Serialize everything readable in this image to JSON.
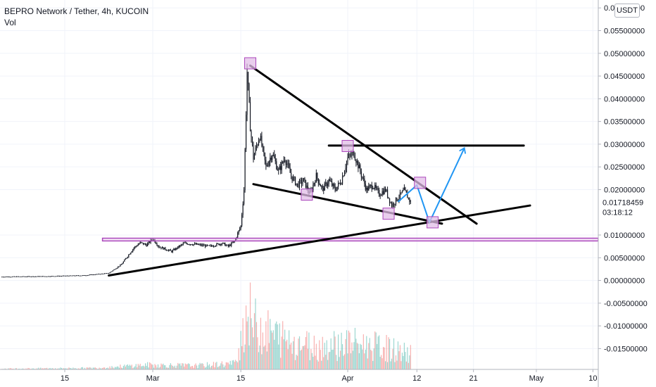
{
  "header": {
    "symbol_line": "BEPRO Network / Tether, 4h, KUCOIN",
    "volume_label": "Vol"
  },
  "currency_button": "USDT",
  "price_badge": {
    "price": "0.01718459",
    "countdown": "03:18:12",
    "color": "#ffffff"
  },
  "colors": {
    "up": "#26a69a",
    "down": "#ef5350",
    "candle": "#131722",
    "grid": "#f0f3fa",
    "drawing": "#000000",
    "projection": "#2196f3",
    "highlight_fill": "#e1bee7",
    "highlight_stroke": "#ab47bc",
    "zone_stroke": "#ab47bc"
  },
  "chart_data": {
    "type": "line",
    "title": "",
    "xlabel": "",
    "ylabel": "",
    "y_axis": {
      "ylim": [
        -0.0185,
        0.0605
      ],
      "ticks": [
        {
          "value": 0.06,
          "label": "0.06000000"
        },
        {
          "value": 0.055,
          "label": "0.05500000"
        },
        {
          "value": 0.05,
          "label": "0.05000000"
        },
        {
          "value": 0.045,
          "label": "0.04500000"
        },
        {
          "value": 0.04,
          "label": "0.04000000"
        },
        {
          "value": 0.035,
          "label": "0.03500000"
        },
        {
          "value": 0.03,
          "label": "0.03000000"
        },
        {
          "value": 0.025,
          "label": "0.02500000"
        },
        {
          "value": 0.02,
          "label": "0.02000000"
        },
        {
          "value": 0.01,
          "label": "0.01000000"
        },
        {
          "value": 0.005,
          "label": "0.00500000"
        },
        {
          "value": 0.0,
          "label": "0.00000000"
        },
        {
          "value": -0.005,
          "label": "-0.00500000"
        },
        {
          "value": -0.01,
          "label": "-0.01000000"
        },
        {
          "value": -0.015,
          "label": "-0.01500000"
        }
      ]
    },
    "x_axis": {
      "ticks": [
        {
          "day": 15,
          "label": "15"
        },
        {
          "day": 29,
          "label": "Mar"
        },
        {
          "day": 43,
          "label": "15"
        },
        {
          "day": 60,
          "label": "Apr"
        },
        {
          "day": 71,
          "label": "12"
        },
        {
          "day": 80,
          "label": "21"
        },
        {
          "day": 90,
          "label": "May"
        },
        {
          "day": 99,
          "label": "10"
        }
      ]
    },
    "grid": true,
    "legend": "none",
    "price_path": [
      [
        5,
        0.0008
      ],
      [
        12,
        0.0009
      ],
      [
        18,
        0.0011
      ],
      [
        22,
        0.0016
      ],
      [
        24,
        0.0035
      ],
      [
        26,
        0.0072
      ],
      [
        27,
        0.0083
      ],
      [
        28,
        0.0078
      ],
      [
        29,
        0.0092
      ],
      [
        30,
        0.0074
      ],
      [
        32,
        0.0064
      ],
      [
        34,
        0.0082
      ],
      [
        36,
        0.0079
      ],
      [
        38,
        0.0075
      ],
      [
        40,
        0.0082
      ],
      [
        41,
        0.0075
      ],
      [
        42,
        0.0086
      ],
      [
        43,
        0.012
      ],
      [
        43.5,
        0.02
      ],
      [
        44,
        0.046
      ],
      [
        44.5,
        0.034
      ],
      [
        45,
        0.027
      ],
      [
        46,
        0.032
      ],
      [
        47,
        0.025
      ],
      [
        48,
        0.028
      ],
      [
        49,
        0.024
      ],
      [
        50,
        0.027
      ],
      [
        51,
        0.023
      ],
      [
        52,
        0.021
      ],
      [
        53,
        0.022
      ],
      [
        54,
        0.019
      ],
      [
        55,
        0.023
      ],
      [
        56,
        0.02
      ],
      [
        57,
        0.022
      ],
      [
        58,
        0.02
      ],
      [
        59,
        0.022
      ],
      [
        60,
        0.027
      ],
      [
        61,
        0.028
      ],
      [
        62,
        0.024
      ],
      [
        63,
        0.02
      ],
      [
        64,
        0.021
      ],
      [
        65,
        0.019
      ],
      [
        66,
        0.02
      ],
      [
        67,
        0.0165
      ],
      [
        68,
        0.0182
      ],
      [
        69,
        0.0198
      ],
      [
        70,
        0.0172
      ]
    ],
    "volume_path": [
      [
        5,
        0.0001
      ],
      [
        20,
        0.0002
      ],
      [
        28,
        0.0006
      ],
      [
        36,
        0.0005
      ],
      [
        42,
        0.0008
      ],
      [
        43,
        0.004
      ],
      [
        44,
        0.008
      ],
      [
        45,
        0.006
      ],
      [
        47,
        0.005
      ],
      [
        50,
        0.004
      ],
      [
        55,
        0.003
      ],
      [
        60,
        0.0035
      ],
      [
        65,
        0.003
      ],
      [
        70,
        0.002
      ]
    ],
    "drawings": {
      "descending_trendline": [
        [
          44.5,
          0.0473
        ],
        [
          80.5,
          0.0125
        ]
      ],
      "ascending_support": [
        [
          22,
          0.0011
        ],
        [
          89,
          0.0165
        ]
      ],
      "lower_wedge_line": [
        [
          45,
          0.0212
        ],
        [
          75,
          0.0125
        ]
      ],
      "resistance_line": [
        [
          57,
          0.0297
        ],
        [
          88,
          0.0297
        ]
      ],
      "horizontal_zone": [
        [
          21,
          0.0087
        ],
        [
          100,
          0.0093
        ]
      ],
      "projection_path": [
        [
          68,
          0.0173
        ],
        [
          71,
          0.021
        ],
        [
          73,
          0.0128
        ],
        [
          78.5,
          0.029
        ]
      ],
      "highlight_boxes": [
        [
          44.5,
          0.0478
        ],
        [
          53.5,
          0.0189
        ],
        [
          60,
          0.0296
        ],
        [
          66.5,
          0.0147
        ],
        [
          71.5,
          0.0215
        ],
        [
          73.5,
          0.0128
        ]
      ]
    }
  }
}
